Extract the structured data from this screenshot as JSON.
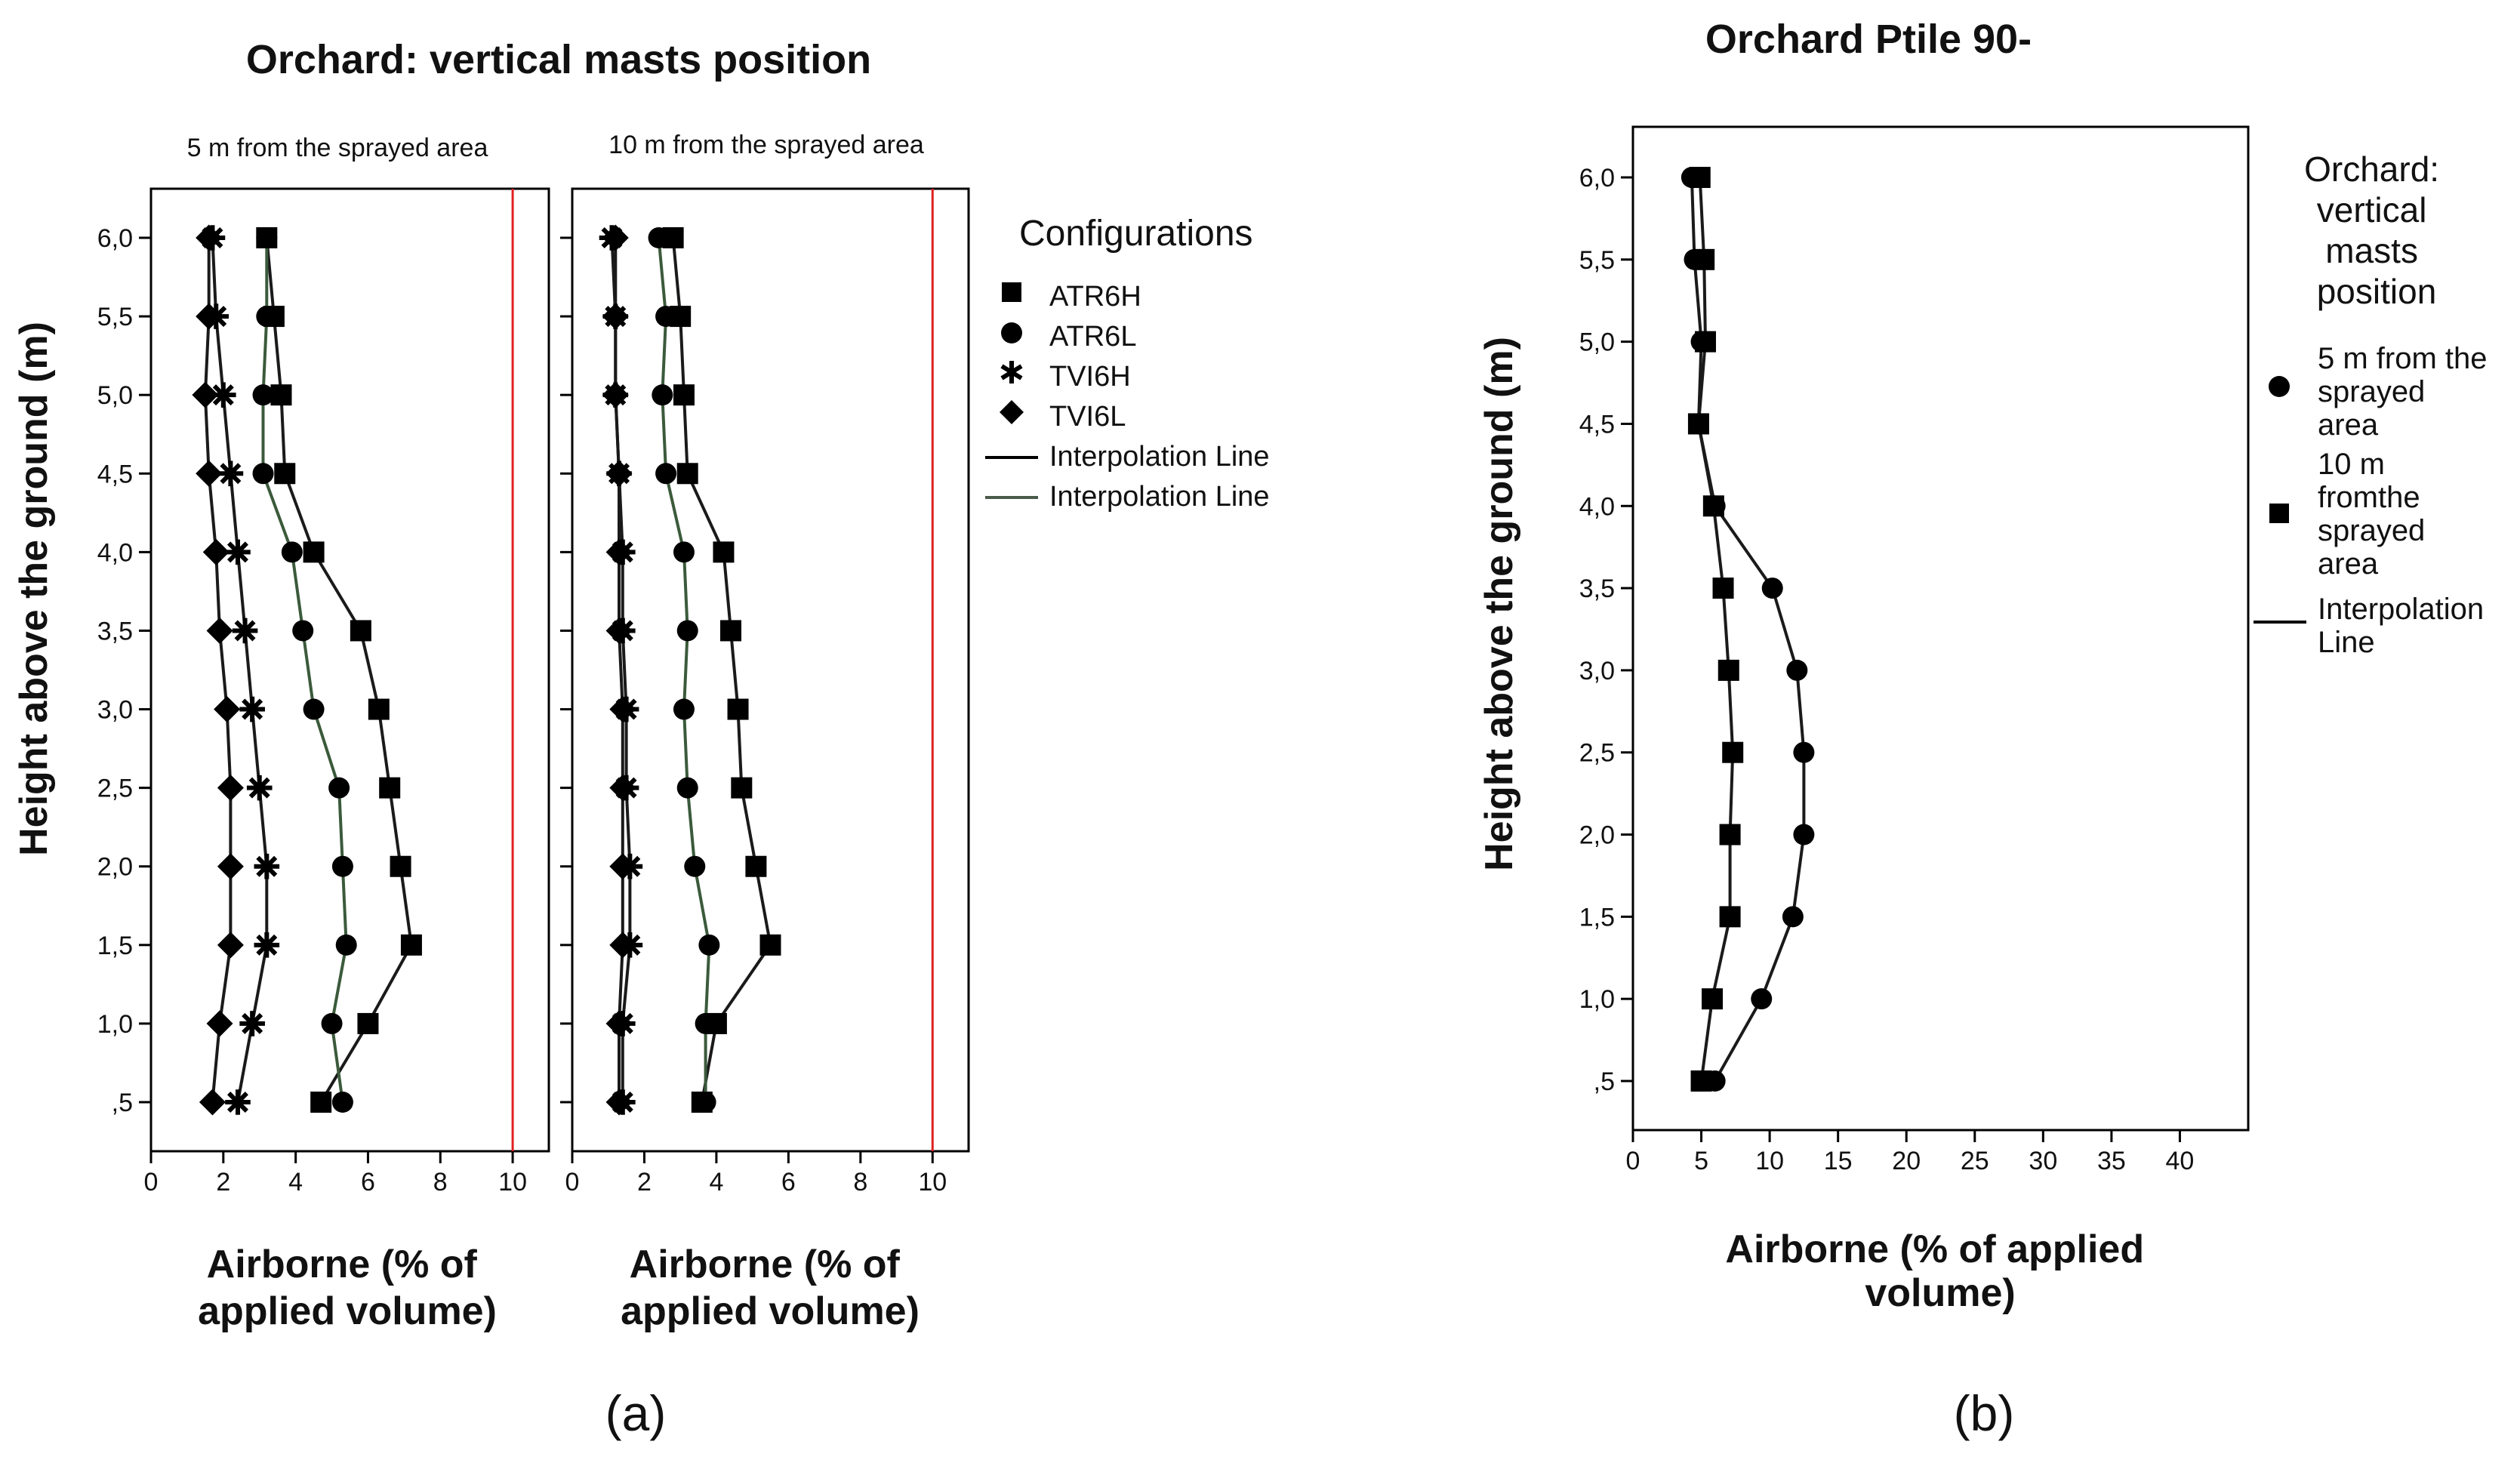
{
  "panel_a": {
    "title": "Orchard: vertical masts position",
    "ylabel": "Height above the ground (m)",
    "legend_title": "Configurations",
    "legend_items": [
      "ATR6H",
      "ATR6L",
      "TVI6H",
      "TVI6L",
      "Interpolation Line",
      "Interpolation Line"
    ],
    "caption": "(a)"
  },
  "panel_b": {
    "title": "Orchard Ptile 90-",
    "legend_title": "Orchard: vertical masts position",
    "legend_items": [
      "5 m from the sprayed area",
      "10 m fromthe sprayed area",
      "Interpolation Line"
    ],
    "caption": "(b)"
  },
  "chart_data": [
    {
      "type": "line",
      "title": "5 m from the sprayed area",
      "xlabel": "Airborne (% of applied volume)",
      "ylabel": "Height above the ground (m)",
      "xlim": [
        0,
        11
      ],
      "x_ticks": [
        0,
        2,
        4,
        6,
        8,
        10
      ],
      "reference_line_x": 10,
      "reference_line_color": "#e02020",
      "y_categories": [
        ",5",
        "1,0",
        "1,5",
        "2,0",
        "2,5",
        "3,0",
        "3,5",
        "4,0",
        "4,5",
        "5,0",
        "5,5",
        "6,0"
      ],
      "series": [
        {
          "name": "ATR6H",
          "marker": "square",
          "values": [
            4.7,
            6.0,
            7.2,
            6.9,
            6.6,
            6.3,
            5.8,
            4.5,
            3.7,
            3.6,
            3.4,
            3.2
          ]
        },
        {
          "name": "ATR6L",
          "marker": "circle",
          "values": [
            5.3,
            5.0,
            5.4,
            5.3,
            5.2,
            4.5,
            4.2,
            3.9,
            3.1,
            3.1,
            3.2,
            3.2
          ]
        },
        {
          "name": "TVI6H",
          "marker": "star",
          "values": [
            2.4,
            2.8,
            3.2,
            3.2,
            3.0,
            2.8,
            2.6,
            2.4,
            2.2,
            2.0,
            1.8,
            1.7
          ]
        },
        {
          "name": "TVI6L",
          "marker": "diamond",
          "values": [
            1.7,
            1.9,
            2.2,
            2.2,
            2.2,
            2.1,
            1.9,
            1.8,
            1.6,
            1.5,
            1.6,
            1.6
          ]
        }
      ]
    },
    {
      "type": "line",
      "title": "10 m from the sprayed area",
      "xlabel": "Airborne (% of applied volume)",
      "xlim": [
        0,
        11
      ],
      "x_ticks": [
        0,
        2,
        4,
        6,
        8,
        10
      ],
      "reference_line_x": 10,
      "reference_line_color": "#e02020",
      "y_categories": [
        ",5",
        "1,0",
        "1,5",
        "2,0",
        "2,5",
        "3,0",
        "3,5",
        "4,0",
        "4,5",
        "5,0",
        "5,5",
        "6,0"
      ],
      "series": [
        {
          "name": "ATR6H",
          "marker": "square",
          "values": [
            3.6,
            4.0,
            5.5,
            5.1,
            4.7,
            4.6,
            4.4,
            4.2,
            3.2,
            3.1,
            3.0,
            2.8
          ]
        },
        {
          "name": "ATR6L",
          "marker": "circle",
          "values": [
            3.7,
            3.7,
            3.8,
            3.4,
            3.2,
            3.1,
            3.2,
            3.1,
            2.6,
            2.5,
            2.6,
            2.4
          ]
        },
        {
          "name": "TVI6H",
          "marker": "star",
          "values": [
            1.4,
            1.4,
            1.6,
            1.6,
            1.5,
            1.5,
            1.4,
            1.4,
            1.3,
            1.2,
            1.2,
            1.1
          ]
        },
        {
          "name": "TVI6L",
          "marker": "diamond",
          "values": [
            1.3,
            1.3,
            1.4,
            1.4,
            1.4,
            1.4,
            1.3,
            1.3,
            1.3,
            1.2,
            1.2,
            1.2
          ]
        }
      ]
    },
    {
      "type": "line",
      "title": "Orchard Ptile 90-",
      "xlabel": "Airborne (% of applied volume)",
      "ylabel": "Height above the ground (m)",
      "xlim": [
        0,
        45
      ],
      "x_ticks": [
        0,
        5,
        10,
        15,
        20,
        25,
        30,
        35,
        40
      ],
      "y_categories": [
        ",5",
        "1,0",
        "1,5",
        "2,0",
        "2,5",
        "3,0",
        "3,5",
        "4,0",
        "4,5",
        "5,0",
        "5,5",
        "6,0"
      ],
      "series": [
        {
          "name": "5 m from the sprayed area",
          "marker": "circle",
          "values": [
            6.0,
            9.4,
            11.7,
            12.5,
            12.5,
            12.0,
            10.2,
            6.0,
            4.8,
            5.0,
            4.5,
            4.3
          ]
        },
        {
          "name": "10 m fromthe sprayed area",
          "marker": "square",
          "values": [
            5.0,
            5.8,
            7.1,
            7.1,
            7.3,
            7.0,
            6.6,
            5.9,
            4.8,
            5.3,
            5.2,
            4.9
          ]
        }
      ]
    }
  ]
}
